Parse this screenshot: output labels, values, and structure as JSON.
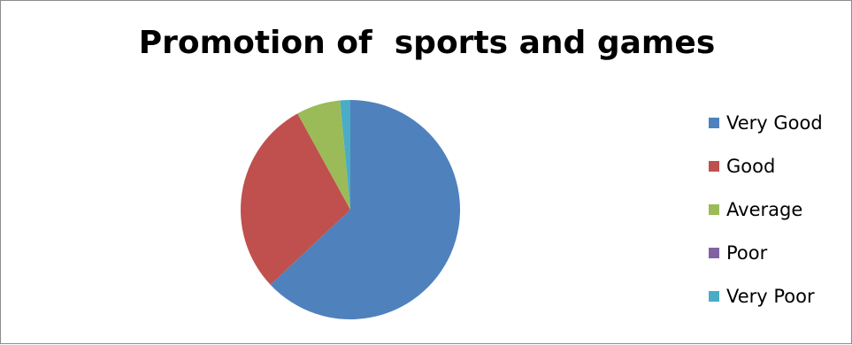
{
  "chart_data": {
    "type": "pie",
    "title": "Promotion of  sports and games",
    "categories": [
      "Very Good",
      "Good",
      "Average",
      "Poor",
      "Very Poor"
    ],
    "values": [
      63,
      29,
      6.5,
      0,
      1.5
    ],
    "colors": [
      "#4f81bd",
      "#c0504d",
      "#9bbb59",
      "#8064a2",
      "#4bacc6"
    ],
    "legend_position": "right",
    "start_angle_deg": 0,
    "direction": "clockwise"
  }
}
